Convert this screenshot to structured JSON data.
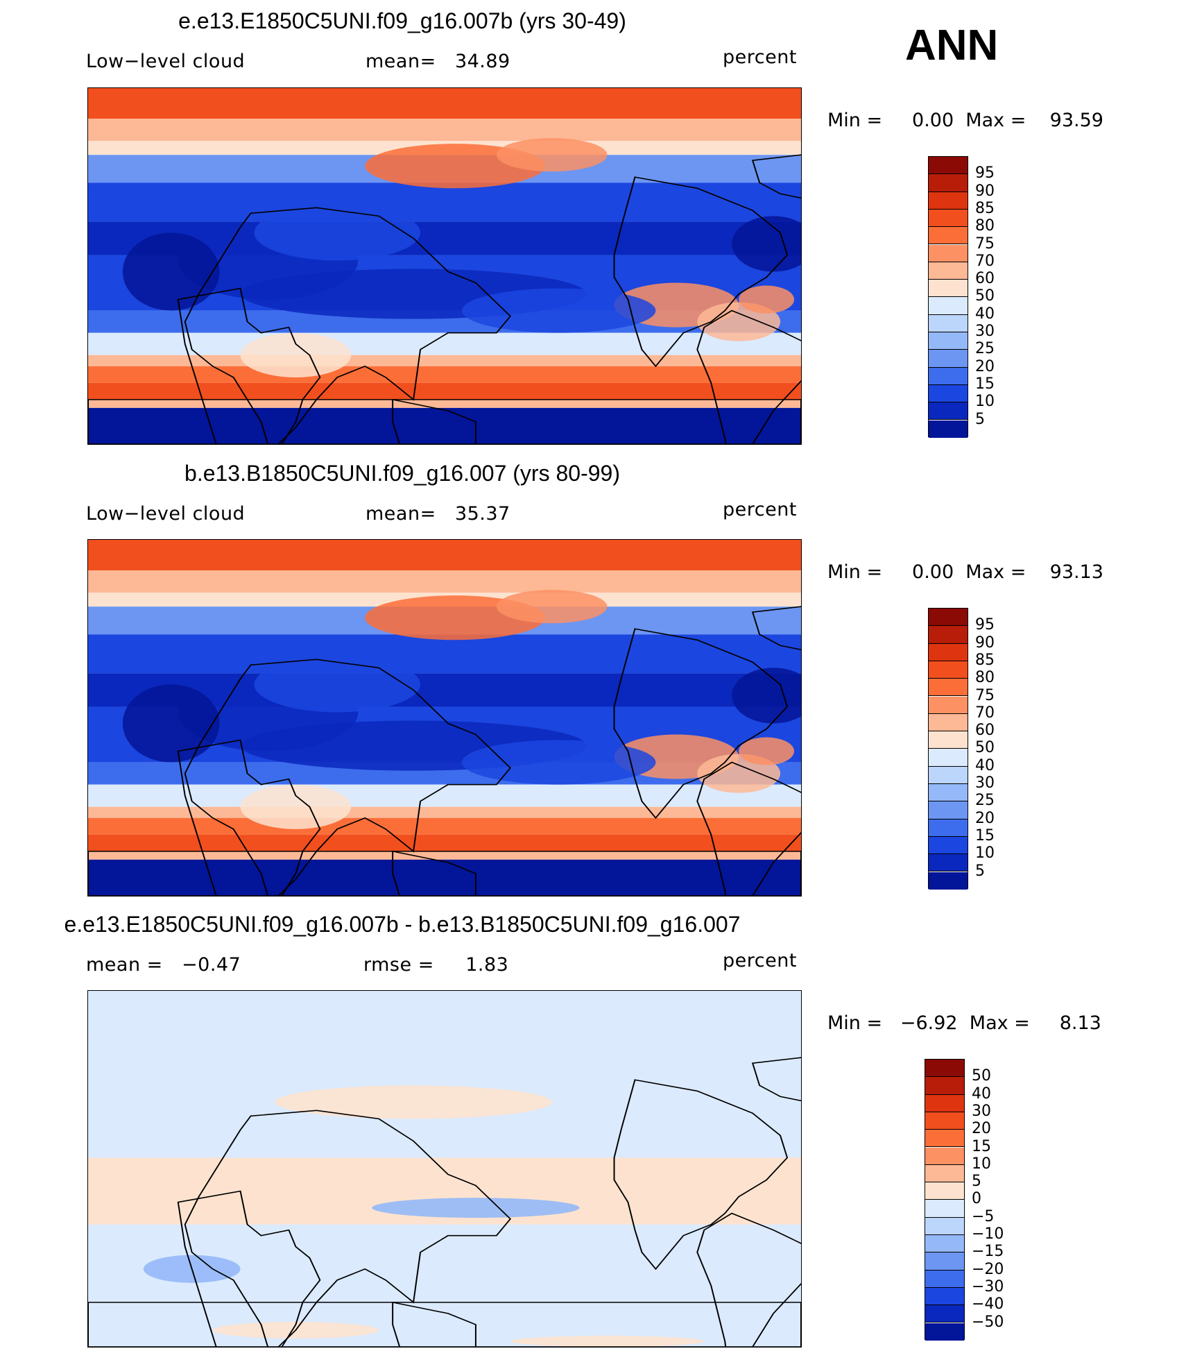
{
  "season": "ANN",
  "panels": [
    {
      "title": "e.e13.E1850C5UNI.f09_g16.007b (yrs 30-49)",
      "left_label": "Low−level cloud",
      "mid_label": "mean=   34.89",
      "units": "percent",
      "minmax": "Min =     0.00  Max =    93.59",
      "kind": "abs"
    },
    {
      "title": "b.e13.B1850C5UNI.f09_g16.007 (yrs 80-99)",
      "left_label": "Low−level cloud",
      "mid_label": "mean=   35.37",
      "units": "percent",
      "minmax": "Min =     0.00  Max =    93.13",
      "kind": "abs"
    },
    {
      "title": "e.e13.E1850C5UNI.f09_g16.007b - b.e13.B1850C5UNI.f09_g16.007",
      "left_label": "mean =   −0.47",
      "mid_label": "rmse =     1.83",
      "units": "percent",
      "minmax": "Min =   −6.92  Max =     8.13",
      "kind": "diff"
    }
  ],
  "colorbar_abs": {
    "labels": [
      "95",
      "90",
      "85",
      "80",
      "75",
      "70",
      "60",
      "50",
      "40",
      "30",
      "25",
      "20",
      "15",
      "10",
      "5"
    ],
    "colors": [
      "#8b0a05",
      "#b81d09",
      "#de3510",
      "#f24f1e",
      "#fb6e38",
      "#fc9164",
      "#fdb895",
      "#fde3cf",
      "#dbeafd",
      "#bcd5fb",
      "#95b8f8",
      "#6c96f2",
      "#3d6ded",
      "#1b46df",
      "#0a28bd",
      "#031598"
    ]
  },
  "colorbar_diff": {
    "labels": [
      "50",
      "40",
      "30",
      "20",
      "15",
      "10",
      "5",
      "0",
      "−5",
      "−10",
      "−15",
      "−20",
      "−30",
      "−40",
      "−50"
    ],
    "colors": [
      "#8b0a05",
      "#b81d09",
      "#de3510",
      "#f24f1e",
      "#fb6e38",
      "#fc9164",
      "#fdb895",
      "#fde3cf",
      "#dbeafd",
      "#bcd5fb",
      "#95b8f8",
      "#6c96f2",
      "#3d6ded",
      "#1b46df",
      "#0a28bd",
      "#031598"
    ]
  }
}
